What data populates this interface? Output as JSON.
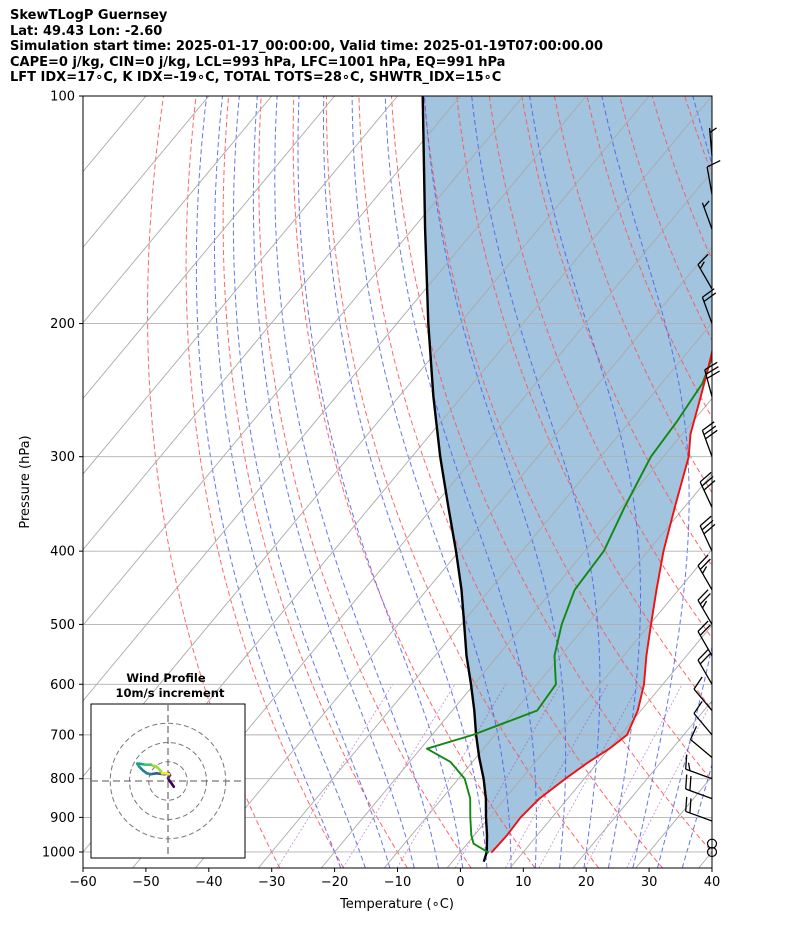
{
  "header": {
    "line1": "SkewTLogP Guernsey",
    "line2": "Lat: 49.43   Lon: -2.60",
    "line3": "Simulation start time: 2025-01-17_00:00:00, Valid time: 2025-01-19T07:00:00.00",
    "line4": "CAPE=0 j/kg, CIN=0 j/kg, LCL=993 hPa, LFC=1001 hPa, EQ=991 hPa",
    "line5": "LFT IDX=17∘C, K IDX=-19∘C, TOTAL TOTS=28∘C, SHWTR_IDX=15∘C"
  },
  "chart_data": {
    "type": "line",
    "title": "SkewTLogP Guernsey",
    "xlabel": "Temperature (∘C)",
    "ylabel": "Pressure (hPa)",
    "xlim": [
      -60,
      40
    ],
    "ylim": [
      1050,
      100
    ],
    "x_ticks": [
      -60,
      -50,
      -40,
      -30,
      -20,
      -10,
      0,
      10,
      20,
      30,
      40
    ],
    "x_tick_labels": [
      "−60",
      "−50",
      "−40",
      "−30",
      "−20",
      "−10",
      "0",
      "10",
      "20",
      "30",
      "40"
    ],
    "y_ticks": [
      1000,
      900,
      800,
      700,
      600,
      500,
      400,
      300,
      200,
      100
    ],
    "y_tick_labels": [
      "1000",
      "900",
      "800",
      "700",
      "600",
      "500",
      "400",
      "300",
      "200",
      "100"
    ],
    "skew_deg_per_log10p": 100,
    "cape_cin_shading": "#a2c4de",
    "series": [
      {
        "name": "Temperature",
        "color": "#ee1111",
        "p": [
          1002,
          980,
          950,
          900,
          850,
          800,
          760,
          730,
          700,
          650,
          600,
          550,
          500,
          450,
          400,
          350,
          300,
          280,
          250,
          230,
          210,
          190,
          170,
          150,
          130,
          110,
          100
        ],
        "t": [
          5.0,
          5.1,
          5.2,
          5.0,
          5.5,
          7.0,
          8.5,
          10.0,
          11.0,
          9.5,
          7.0,
          3.6,
          0.2,
          -3.5,
          -7.5,
          -11.5,
          -16.0,
          -18.7,
          -22.0,
          -24.5,
          -27.3,
          -30.0,
          -33.0,
          -35.5,
          -39.5,
          -42.5,
          -44.6
        ]
      },
      {
        "name": "Dewpoint",
        "color": "#118811",
        "p": [
          1002,
          990,
          975,
          950,
          900,
          850,
          800,
          760,
          730,
          700,
          650,
          600,
          550,
          500,
          450,
          400,
          350,
          300,
          270,
          240,
          230,
          200,
          180,
          170,
          155,
          145,
          130,
          110,
          100
        ],
        "t": [
          4.6,
          3.0,
          1.0,
          -0.5,
          -3.0,
          -5.5,
          -9.0,
          -13.5,
          -19.0,
          -13.5,
          -6.5,
          -7.0,
          -11.0,
          -14.0,
          -16.5,
          -17.0,
          -19.5,
          -22.0,
          -22.5,
          -23.5,
          -24.5,
          -28.0,
          -31.5,
          -35.5,
          -38.0,
          -34.5,
          -38.0,
          -41.0,
          -44.0
        ]
      },
      {
        "name": "Parcel",
        "color": "#000000",
        "p": [
          1030,
          1000,
          950,
          900,
          850,
          800,
          750,
          700,
          650,
          600,
          550,
          500,
          450,
          400,
          350,
          300,
          250,
          200,
          150,
          100
        ],
        "t": [
          5.0,
          4.2,
          2.0,
          -0.5,
          -3.0,
          -6.0,
          -9.5,
          -13.0,
          -16.5,
          -20.5,
          -25.0,
          -29.5,
          -34.5,
          -40.5,
          -47.5,
          -55.5,
          -64.5,
          -75.0,
          -88.0,
          -106.0
        ]
      }
    ],
    "wind_barbs": [
      {
        "p": 1000,
        "calm": true
      },
      {
        "p": 975,
        "calm": true
      },
      {
        "p": 910,
        "dir": 290,
        "speed": 20
      },
      {
        "p": 850,
        "dir": 290,
        "speed": 20
      },
      {
        "p": 800,
        "dir": 290,
        "speed": 15
      },
      {
        "p": 750,
        "dir": 310,
        "speed": 10
      },
      {
        "p": 700,
        "dir": 320,
        "speed": 10
      },
      {
        "p": 650,
        "dir": 320,
        "speed": 10
      },
      {
        "p": 600,
        "dir": 330,
        "speed": 20
      },
      {
        "p": 550,
        "dir": 330,
        "speed": 20
      },
      {
        "p": 500,
        "dir": 330,
        "speed": 25
      },
      {
        "p": 450,
        "dir": 330,
        "speed": 25
      },
      {
        "p": 400,
        "dir": 335,
        "speed": 30
      },
      {
        "p": 350,
        "dir": 335,
        "speed": 30
      },
      {
        "p": 300,
        "dir": 340,
        "speed": 30
      },
      {
        "p": 250,
        "dir": 345,
        "speed": 30
      },
      {
        "p": 200,
        "dir": 340,
        "speed": 20
      },
      {
        "p": 180,
        "dir": 330,
        "speed": 15
      },
      {
        "p": 150,
        "dir": 340,
        "speed": 5
      },
      {
        "p": 135,
        "dir": 350,
        "speed": 10
      },
      {
        "p": 120,
        "dir": 355,
        "speed": 5
      }
    ],
    "hodograph": {
      "title": "Wind Profile",
      "subtitle": "10m/s increment",
      "ring_speeds": [
        10,
        20,
        30
      ],
      "max_speed": 40,
      "u": [
        3.0,
        2.0,
        0.5,
        0.0,
        1.0,
        0.5,
        -2.0,
        -6.0,
        -9.0,
        -11.0,
        -13.0,
        -15.0,
        -16.0,
        -15.0,
        -12.0,
        -9.0,
        -8.0,
        -6.0,
        -4.0,
        -3.0,
        -1.0,
        0.5
      ],
      "v": [
        -3.0,
        -1.5,
        0.5,
        1.5,
        3.0,
        4.0,
        3.5,
        4.0,
        3.5,
        4.0,
        5.5,
        7.5,
        9.0,
        9.0,
        8.5,
        8.5,
        8.0,
        7.5,
        5.5,
        4.0,
        4.0,
        3.5
      ]
    }
  }
}
